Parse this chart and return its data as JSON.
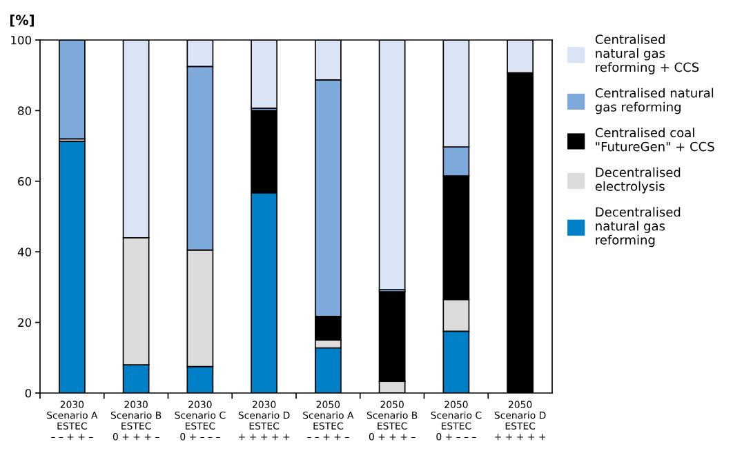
{
  "chart_data": {
    "type": "bar",
    "stacked": true,
    "ylabel": "[%]",
    "categories": [
      "2030\nScenario A\nESTEC\n– – + + –",
      "2030\nScenario B\nESTEC\n0 + + + –",
      "2030\nScenario C\nESTEC\n0 + – – –",
      "2030\nScenario D\nESTEC\n+ + + + +",
      "2050\nScenario A\nESTEC\n– – + + –",
      "2050\nScenario B\nESTEC\n0 + + + –",
      "2050\nScenario C\nESTEC\n0 + – – –",
      "2050\nScenario D\nESTEC\n+ + + + +"
    ],
    "series": [
      {
        "name": "Decentralised\nnatural gas\nreforming",
        "color": "#0080c6",
        "values": [
          71.3,
          8,
          7.5,
          56.7,
          12.8,
          0,
          17.5,
          0
        ]
      },
      {
        "name": "Decentralised\nelectrolysis",
        "color": "#dcdcdc",
        "values": [
          0.7,
          36,
          33,
          0,
          2.2,
          3.3,
          9,
          0
        ]
      },
      {
        "name": "Centralised coal\n\"FutureGen\" + CCS",
        "color": "#000000",
        "values": [
          0,
          0,
          0,
          23.3,
          6.7,
          25.4,
          35,
          90.7
        ]
      },
      {
        "name": "Centralised natural\ngas reforming",
        "color": "#7da9db",
        "values": [
          28,
          0,
          52,
          0.7,
          67,
          0.6,
          8.2,
          0
        ]
      },
      {
        "name": "Centralised\nnatural gas\nreforming + CCS",
        "color": "#dae4f4",
        "values": [
          0,
          56,
          7.5,
          19.3,
          11.3,
          70.7,
          30.3,
          9.3
        ]
      }
    ],
    "ylim": [
      0,
      100
    ],
    "yticks": [
      0,
      20,
      40,
      60,
      80,
      100
    ],
    "grid": false,
    "legend": "right"
  }
}
